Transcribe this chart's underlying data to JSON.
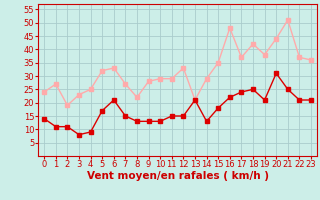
{
  "xlabel": "Vent moyen/en rafales ( km/h )",
  "bg_color": "#cceee8",
  "grid_color": "#aacccc",
  "mean_wind": [
    14,
    11,
    11,
    8,
    9,
    17,
    21,
    15,
    13,
    13,
    13,
    15,
    15,
    21,
    13,
    18,
    22,
    24,
    25,
    21,
    31,
    25,
    21,
    21
  ],
  "gust_wind": [
    24,
    27,
    19,
    23,
    25,
    32,
    33,
    27,
    22,
    28,
    29,
    29,
    33,
    21,
    29,
    35,
    48,
    37,
    42,
    38,
    44,
    51,
    37,
    36
  ],
  "mean_color": "#dd0000",
  "gust_color": "#ffaaaa",
  "ylim": [
    0,
    57
  ],
  "yticks": [
    5,
    10,
    15,
    20,
    25,
    30,
    35,
    40,
    45,
    50,
    55
  ],
  "xticks": [
    0,
    1,
    2,
    3,
    4,
    5,
    6,
    7,
    8,
    9,
    10,
    11,
    12,
    13,
    14,
    15,
    16,
    17,
    18,
    19,
    20,
    21,
    22,
    23
  ],
  "xlabel_color": "#cc0000",
  "xlabel_fontsize": 7.5,
  "tick_fontsize": 6,
  "marker_size": 2.5,
  "line_width": 1.0
}
